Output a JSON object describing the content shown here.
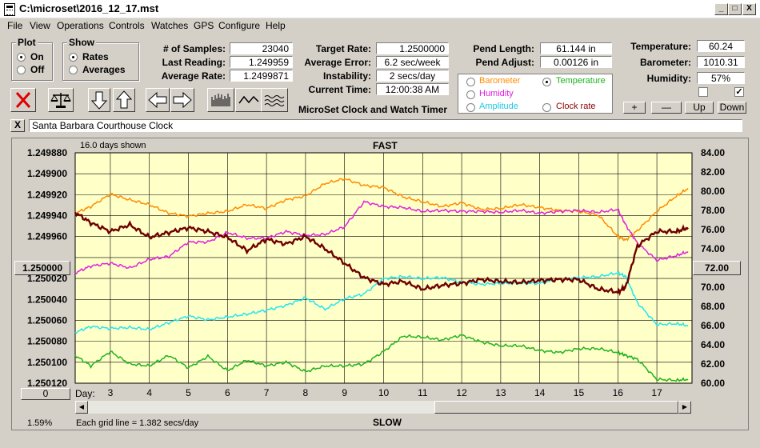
{
  "window": {
    "title": "C:\\microset\\2016_12_17.mst",
    "btn_min": "_",
    "btn_max": "□",
    "btn_close": "X"
  },
  "menu": [
    "File",
    "View",
    "Operations",
    "Controls",
    "Watches",
    "GPS",
    "Configure",
    "Help"
  ],
  "plot_group": {
    "title": "Plot",
    "on": "On",
    "off": "Off",
    "selected": "On"
  },
  "show_group": {
    "title": "Show",
    "rates": "Rates",
    "averages": "Averages",
    "selected": "Rates"
  },
  "stats": {
    "samples_label": "# of Samples:",
    "samples": "23040",
    "last_label": "Last Reading:",
    "last": "1.249959",
    "avg_rate_label": "Average Rate:",
    "avg_rate": "1.2499871"
  },
  "rates": {
    "target_label": "Target Rate:",
    "target": "1.2500000",
    "avg_err_label": "Average Error:",
    "avg_err": "6.2 sec/week",
    "instab_label": "Instability:",
    "instab": "2 secs/day",
    "time_label": "Current Time:",
    "time": "12:00:38 AM"
  },
  "app_label": "MicroSet Clock and Watch Timer",
  "pend": {
    "length_label": "Pend Length:",
    "length": "61.144 in",
    "adjust_label": "Pend Adjust:",
    "adjust": "0.00126 in"
  },
  "sensor_select": {
    "barometer": "Barometer",
    "temperature": "Temperature",
    "humidity": "Humidity",
    "amplitude": "Amplitude",
    "clock_rate": "Clock rate",
    "selected": "Temperature"
  },
  "env": {
    "temp_label": "Temperature:",
    "temp": "60.24",
    "baro_label": "Barometer:",
    "baro": "1010.31",
    "hum_label": "Humidity:",
    "hum": "57%",
    "check1": false,
    "check2": true
  },
  "scale_buttons": {
    "plus": "+",
    "minus": "—",
    "up": "Up",
    "down": "Down"
  },
  "clock_name": "Santa Barbara Courthouse Clock",
  "clear_btn": "X",
  "graph": {
    "days_shown": "16.0 days shown",
    "fast": "FAST",
    "slow": "SLOW",
    "left_center_btn": "1.250000",
    "right_center_btn": "72.00",
    "day_label": "Day:",
    "zero_btn": "0",
    "percent": "1.59%",
    "grid_note": "Each grid line = 1.382 secs/day",
    "scroll_left": "◀",
    "scroll_right": "▶"
  },
  "chart_data": {
    "type": "line",
    "x_label": "Day:",
    "x_ticks": [
      3,
      4,
      5,
      6,
      7,
      8,
      9,
      10,
      11,
      12,
      13,
      14,
      15,
      16,
      17
    ],
    "x_range": [
      2.1,
      17.9
    ],
    "left_axis_ticks": [
      "1.249880",
      "1.249900",
      "1.249920",
      "1.249940",
      "1.249960",
      "1.250000",
      "1.250020",
      "1.250040",
      "1.250060",
      "1.250080",
      "1.250100",
      "1.250120"
    ],
    "left_axis_range": [
      1.24988,
      1.25012
    ],
    "left_axis_inverted": true,
    "right_axis_ticks": [
      "84.00",
      "82.00",
      "80.00",
      "78.00",
      "76.00",
      "74.00",
      "72.00",
      "70.00",
      "68.00",
      "66.00",
      "64.00",
      "62.00",
      "60.00"
    ],
    "right_axis_range": [
      60,
      84
    ],
    "colors": {
      "rate": "#6e0000",
      "barometer": "#ff8c00",
      "temperature": "#1fb31f",
      "humidity": "#e020e0",
      "amplitude": "#22e5f0",
      "plot_bg": "#ffffc8"
    },
    "series": [
      {
        "name": "Clock rate",
        "color": "#6e0000",
        "x": [
          2.1,
          2.5,
          3,
          3.5,
          4,
          4.5,
          5,
          5.5,
          6,
          6.5,
          7,
          7.5,
          8,
          8.5,
          9,
          9.5,
          10,
          10.5,
          11,
          11.5,
          12,
          12.5,
          13,
          13.5,
          14,
          14.5,
          15,
          15.5,
          16,
          16.2,
          16.5,
          17,
          17.5,
          17.8
        ],
        "y": [
          1.249942,
          1.249953,
          1.249962,
          1.249955,
          1.249968,
          1.249963,
          1.249958,
          1.249962,
          1.249968,
          1.249982,
          1.24997,
          1.249975,
          1.249967,
          1.24998,
          1.249995,
          1.25001,
          1.250017,
          1.250014,
          1.250022,
          1.250018,
          1.250016,
          1.250012,
          1.250014,
          1.250015,
          1.250013,
          1.250012,
          1.250012,
          1.250022,
          1.250025,
          1.25002,
          1.249977,
          1.249962,
          1.249962,
          1.249958
        ]
      },
      {
        "name": "Barometer",
        "color": "#ff8c00",
        "x": [
          2.1,
          2.5,
          3,
          3.5,
          4,
          4.5,
          5,
          5.5,
          6,
          6.5,
          7,
          7.5,
          8,
          8.5,
          9,
          9.5,
          10,
          10.5,
          11,
          11.5,
          12,
          12.5,
          13,
          13.5,
          14,
          14.5,
          15,
          15.5,
          16,
          16.2,
          16.5,
          17,
          17.5,
          17.8
        ],
        "y": [
          77.7,
          78.4,
          79.7,
          79.1,
          78.6,
          77.7,
          77.4,
          77.7,
          77.9,
          78.6,
          78.2,
          79.1,
          79.5,
          80.8,
          81.3,
          80.6,
          80.4,
          79.4,
          78.9,
          78.4,
          78.8,
          78.1,
          78.2,
          78.6,
          78.3,
          78.0,
          77.9,
          77.5,
          75.3,
          74.9,
          75.9,
          77.9,
          79.5,
          80.3
        ]
      },
      {
        "name": "Humidity",
        "color": "#e020e0",
        "x": [
          2.1,
          2.5,
          3,
          3.5,
          4,
          4.5,
          5,
          5.5,
          6,
          6.5,
          7,
          7.5,
          8,
          8.5,
          9,
          9.5,
          10,
          10.5,
          11,
          11.5,
          12,
          12.5,
          13,
          13.5,
          14,
          14.5,
          15,
          15.5,
          16,
          16.2,
          16.5,
          17,
          17.5,
          17.8
        ],
        "y": [
          71.5,
          72.2,
          72.5,
          72.0,
          72.9,
          73.2,
          74.7,
          74.7,
          75.7,
          75.1,
          75.1,
          75.8,
          75.4,
          75.5,
          76.3,
          78.9,
          78.4,
          78.3,
          77.9,
          78.0,
          77.9,
          77.9,
          77.8,
          78.0,
          77.7,
          77.9,
          78.0,
          77.8,
          78.1,
          76.5,
          74.6,
          72.8,
          73.3,
          73.7
        ]
      },
      {
        "name": "Amplitude",
        "color": "#22e5f0",
        "x": [
          2.1,
          2.5,
          3,
          3.5,
          4,
          4.5,
          5,
          5.5,
          6,
          6.5,
          7,
          7.5,
          8,
          8.5,
          9,
          9.5,
          10,
          10.5,
          11,
          11.5,
          12,
          12.5,
          13,
          13.5,
          14,
          14.5,
          15,
          15.5,
          16,
          16.2,
          16.5,
          17,
          17.5,
          17.8
        ],
        "y": [
          65.3,
          65.9,
          65.7,
          65.8,
          65.6,
          66.3,
          67.0,
          66.6,
          66.9,
          67.2,
          67.6,
          68.1,
          68.9,
          67.7,
          68.8,
          69.3,
          70.9,
          71.1,
          70.9,
          71.0,
          70.5,
          70.3,
          70.4,
          70.4,
          70.4,
          70.8,
          71.0,
          71.1,
          71.5,
          71.1,
          68.4,
          66.1,
          66.2,
          66.0
        ]
      },
      {
        "name": "Temperature",
        "color": "#1fb31f",
        "x": [
          2.1,
          2.5,
          3,
          3.5,
          4,
          4.5,
          5,
          5.5,
          6,
          6.5,
          7,
          7.5,
          8,
          8.5,
          9,
          9.5,
          10,
          10.5,
          11,
          11.5,
          12,
          12.5,
          13,
          13.5,
          14,
          14.5,
          15,
          15.5,
          16,
          16.2,
          16.5,
          17,
          17.5,
          17.8
        ],
        "y": [
          62.9,
          61.8,
          63.3,
          62.0,
          61.8,
          62.9,
          61.6,
          62.8,
          61.3,
          62.4,
          61.8,
          62.2,
          61.2,
          61.8,
          61.8,
          62.0,
          63.3,
          64.9,
          64.8,
          64.5,
          65.0,
          64.3,
          63.9,
          63.9,
          63.4,
          63.2,
          63.6,
          63.6,
          63.2,
          62.9,
          62.5,
          60.4,
          60.3,
          60.4
        ]
      }
    ]
  }
}
